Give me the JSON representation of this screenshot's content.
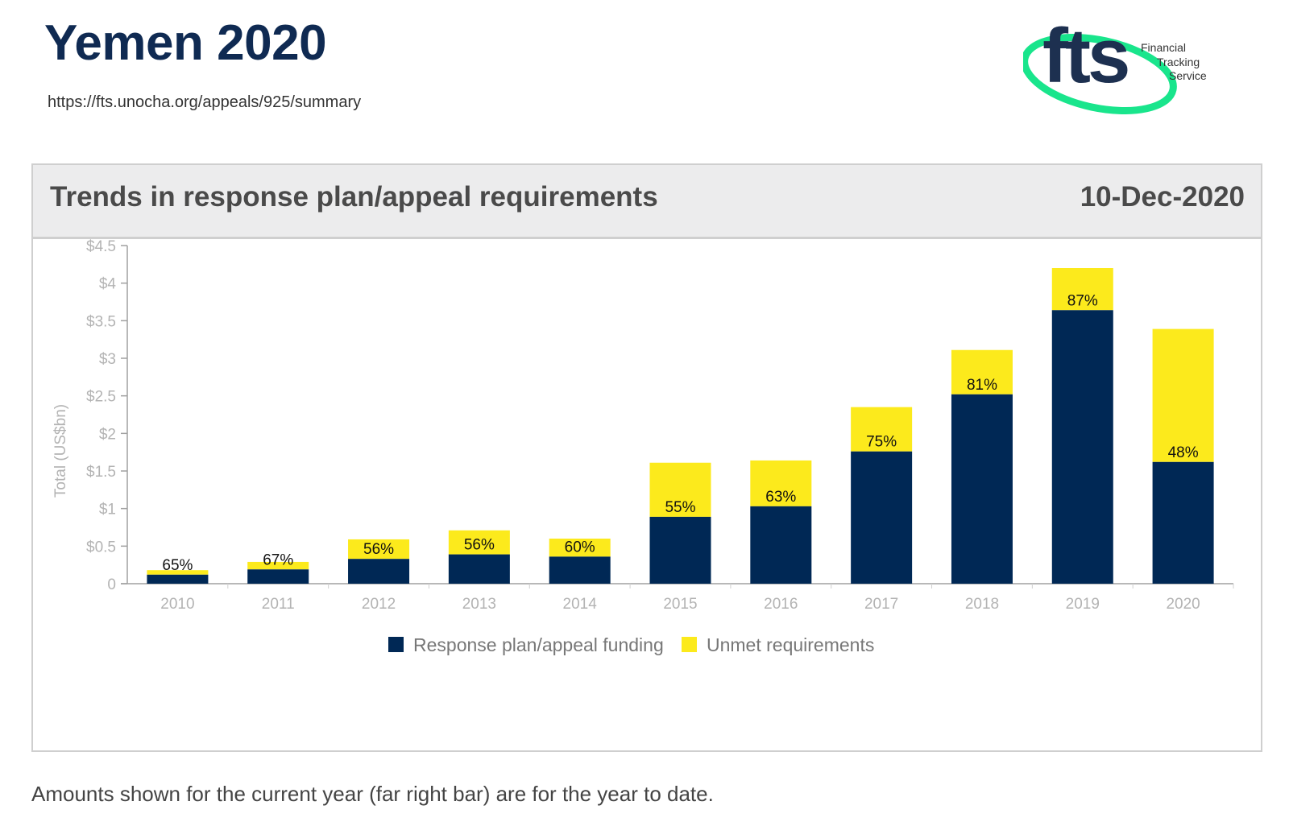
{
  "header": {
    "title": "Yemen 2020",
    "url": "https://fts.unocha.org/appeals/925/summary"
  },
  "logo": {
    "wordmark": "fts",
    "line1": "Financial",
    "line2": "Tracking",
    "line3": "Service",
    "colors": {
      "dark": "#1d3050",
      "swoosh": "#19e58c"
    }
  },
  "panel": {
    "title": "Trends in response plan/appeal requirements",
    "date": "10-Dec-2020"
  },
  "chart_data": {
    "type": "bar",
    "stacked": true,
    "categories": [
      "2010",
      "2011",
      "2012",
      "2013",
      "2014",
      "2015",
      "2016",
      "2017",
      "2018",
      "2019",
      "2020"
    ],
    "series": [
      {
        "name": "Response plan/appeal funding",
        "color": "#002855",
        "values": [
          0.12,
          0.19,
          0.33,
          0.39,
          0.36,
          0.89,
          1.03,
          1.76,
          2.52,
          3.64,
          1.62
        ]
      },
      {
        "name": "Unmet requirements",
        "color": "#fcea1c",
        "values": [
          0.06,
          0.1,
          0.26,
          0.32,
          0.24,
          0.72,
          0.61,
          0.59,
          0.59,
          0.56,
          1.77
        ]
      }
    ],
    "percent_labels": [
      "65%",
      "67%",
      "56%",
      "56%",
      "60%",
      "55%",
      "63%",
      "75%",
      "81%",
      "87%",
      "48%"
    ],
    "ylabel": "Total (US$bn)",
    "xlabel": "",
    "ylim": [
      0,
      4.5
    ],
    "yticks": [
      0,
      0.5,
      1,
      1.5,
      2,
      2.5,
      3,
      3.5,
      4,
      4.5
    ],
    "ytick_labels": [
      "0",
      "$0.5",
      "$1",
      "$1.5",
      "$2",
      "$2.5",
      "$3",
      "$3.5",
      "$4",
      "$4.5"
    ],
    "grid": false,
    "legend": "bottom-center"
  },
  "footnote": "Amounts shown for the current year (far right bar) are for the year to date."
}
